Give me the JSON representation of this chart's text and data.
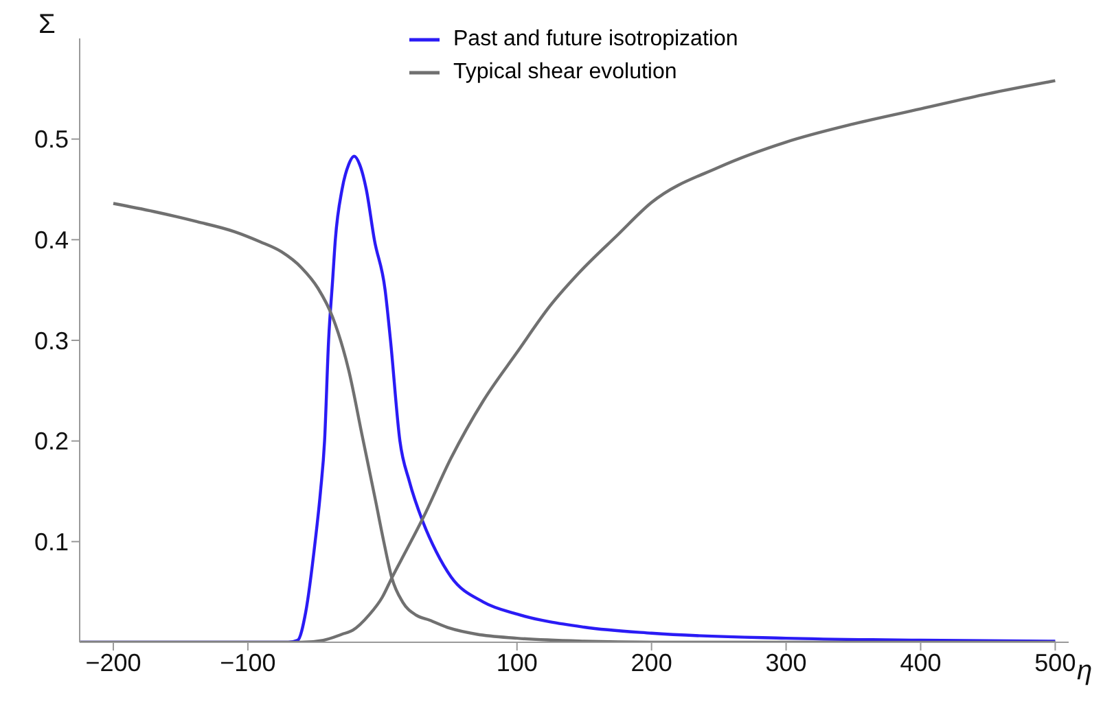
{
  "chart_data": {
    "type": "line",
    "xlabel": "η",
    "ylabel": "Σ",
    "xlim": [
      -225,
      510
    ],
    "ylim": [
      0,
      0.6
    ],
    "xticks": [
      -200,
      -100,
      100,
      200,
      300,
      400,
      500
    ],
    "yticks": [
      0.1,
      0.2,
      0.3,
      0.4,
      0.5
    ],
    "grid": false,
    "legend": "top",
    "marker": "none",
    "line_style": "solid",
    "series": [
      {
        "name": "Past and future isotropization",
        "color": "#2a1bf5",
        "x": [
          -225,
          -100,
          -70,
          -63,
          -57,
          -50,
          -46,
          -43,
          -40,
          -37,
          -35,
          -30,
          -25,
          -21,
          -17,
          -12,
          -6,
          2,
          6,
          13,
          20,
          30,
          40,
          51,
          75,
          100,
          150,
          200,
          300,
          400,
          500
        ],
        "values": [
          0,
          0,
          0,
          0.002,
          0.03,
          0.1,
          0.15,
          0.2,
          0.3,
          0.36,
          0.4,
          0.45,
          0.475,
          0.483,
          0.475,
          0.45,
          0.4,
          0.35,
          0.3,
          0.2,
          0.16,
          0.12,
          0.09,
          0.065,
          0.04,
          0.028,
          0.015,
          0.009,
          0.004,
          0.002,
          0.001
        ]
      },
      {
        "name": "Typical shear evolution",
        "color": "#707070",
        "x": [
          -200,
          -170,
          -138,
          -110,
          -91,
          -75,
          -60,
          -48,
          -37,
          -25,
          -15,
          -5,
          1,
          7,
          15,
          25,
          35,
          50,
          70,
          100,
          150,
          200,
          300,
          400,
          500
        ],
        "values": [
          0.436,
          0.428,
          0.418,
          0.408,
          0.398,
          0.388,
          0.372,
          0.352,
          0.323,
          0.27,
          0.205,
          0.14,
          0.1,
          0.064,
          0.04,
          0.027,
          0.022,
          0.014,
          0.008,
          0.004,
          0.001,
          0,
          0,
          0,
          0
        ]
      },
      {
        "color": "#707070",
        "x": [
          -225,
          -60,
          -44,
          -30,
          -22,
          -10,
          0,
          7,
          18,
          30,
          51,
          75,
          100,
          125,
          146,
          175,
          200,
          250,
          300,
          350,
          400,
          450,
          500
        ],
        "values": [
          0,
          0,
          0.002,
          0.008,
          0.012,
          0.027,
          0.045,
          0.064,
          0.092,
          0.123,
          0.183,
          0.24,
          0.288,
          0.335,
          0.367,
          0.405,
          0.437,
          0.472,
          0.497,
          0.515,
          0.53,
          0.545,
          0.558
        ]
      }
    ]
  }
}
